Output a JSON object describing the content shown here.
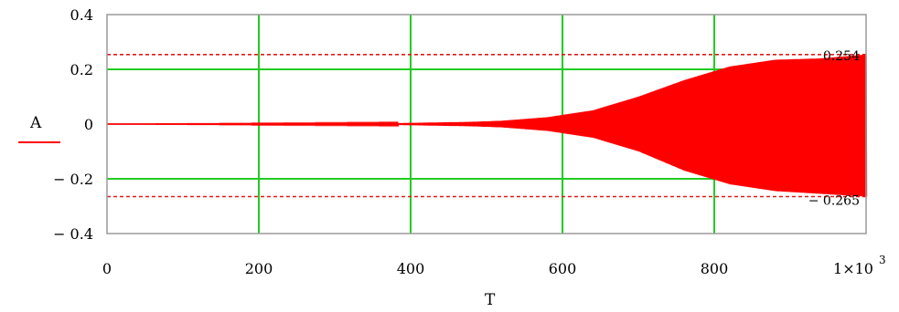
{
  "chart_data": {
    "type": "line",
    "xlabel": "T",
    "ylabel": "A",
    "xlim": [
      0,
      1000
    ],
    "ylim": [
      -0.4,
      0.4
    ],
    "x_ticks": [
      "0",
      "200",
      "400",
      "600",
      "800",
      "1×10"
    ],
    "x_tick_values": [
      0,
      200,
      400,
      600,
      800,
      1000
    ],
    "x_exponent_label": "3",
    "y_ticks": [
      "0.4",
      "0.2",
      "0",
      "− 0.2",
      "− 0.4"
    ],
    "y_tick_values": [
      0.4,
      0.2,
      0,
      -0.2,
      -0.4
    ],
    "grid_lines_x": [
      200,
      400,
      600,
      800
    ],
    "grid_lines_y": [
      0.2,
      0,
      -0.2
    ],
    "reference_lines": [
      {
        "value": 0.254,
        "label": "0.254",
        "style": "dashed"
      },
      {
        "value": -0.265,
        "label": "− 0.265",
        "style": "dashed"
      }
    ],
    "series": [
      {
        "color": "#ff0000",
        "description_points": {
          "x": [
            0,
            380,
            480,
            520,
            580,
            640,
            700,
            760,
            820,
            880,
            940,
            1000
          ],
          "upper": [
            0,
            0.003,
            0.008,
            0.012,
            0.025,
            0.05,
            0.1,
            0.16,
            0.21,
            0.235,
            0.24,
            0.254
          ],
          "lower": [
            0,
            -0.003,
            -0.008,
            -0.012,
            -0.025,
            -0.05,
            -0.1,
            -0.17,
            -0.22,
            -0.245,
            -0.255,
            -0.265
          ]
        }
      }
    ],
    "colors": {
      "signal": "#ff0000",
      "grid": "#22cc22",
      "reference": "#e01b1b",
      "axes": "#9a9a9a"
    }
  }
}
